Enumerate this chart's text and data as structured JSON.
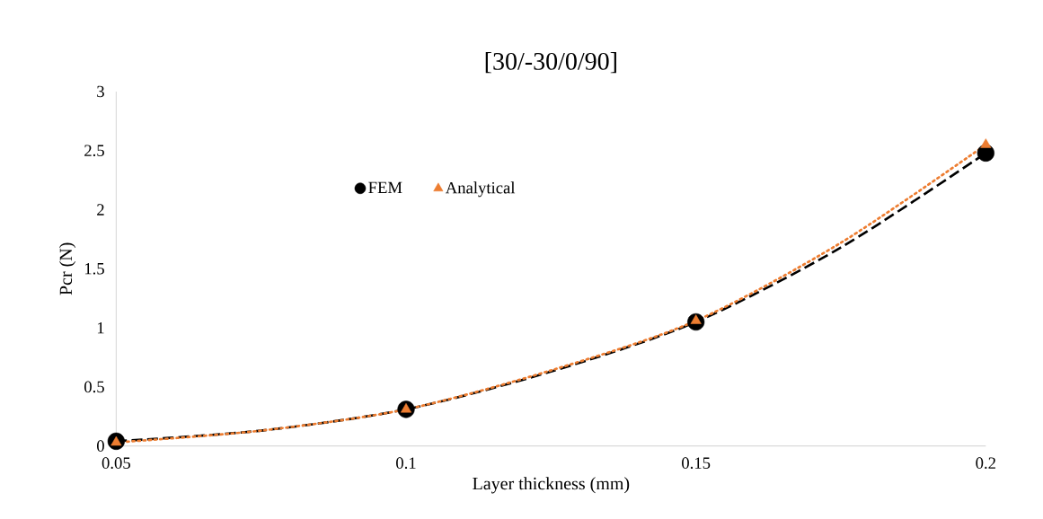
{
  "chart_data": {
    "type": "scatter",
    "title": "[30/-30/0/90]",
    "xlabel": "Layer thickness (mm)",
    "ylabel": "Pcr (N)",
    "x": [
      0.05,
      0.1,
      0.15,
      0.2
    ],
    "series": [
      {
        "name": "FEM",
        "color": "#000000",
        "marker": "circle",
        "values": [
          0.04,
          0.31,
          1.05,
          2.48
        ]
      },
      {
        "name": "Analytical",
        "color": "#ed7d31",
        "marker": "triangle",
        "values": [
          0.03,
          0.31,
          1.06,
          2.55
        ]
      },
      {
        "type": "line",
        "color": "#000000",
        "line_style": "dashed",
        "x": [
          0.05,
          0.075,
          0.1,
          0.125,
          0.15,
          0.175,
          0.2
        ],
        "values": [
          0.04,
          0.13,
          0.31,
          0.63,
          1.05,
          1.68,
          2.48
        ]
      },
      {
        "type": "line",
        "color": "#ed7d31",
        "line_style": "dotted",
        "x": [
          0.05,
          0.075,
          0.1,
          0.125,
          0.15,
          0.175,
          0.2
        ],
        "values": [
          0.03,
          0.13,
          0.31,
          0.64,
          1.06,
          1.72,
          2.55
        ]
      }
    ],
    "xlim": [
      0.05,
      0.2
    ],
    "ylim": [
      0,
      3
    ],
    "xticks": [
      0.05,
      0.1,
      0.15,
      0.2
    ],
    "yticks": [
      0,
      0.5,
      1,
      1.5,
      2,
      2.5,
      3
    ],
    "legend": "top left",
    "grid": false
  }
}
